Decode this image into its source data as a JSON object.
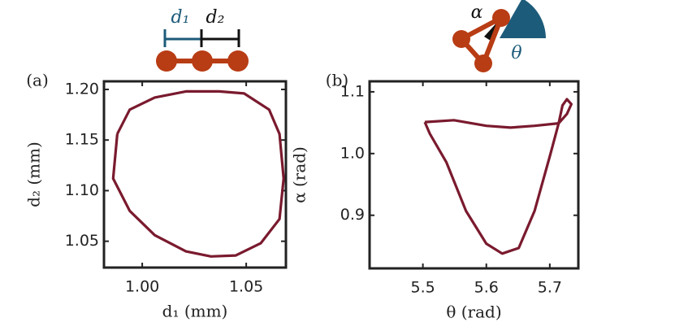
{
  "chart_data": [
    {
      "type": "line",
      "panel_label": "(a)",
      "xlabel": "d₁ (mm)",
      "ylabel": "d₂ (mm)",
      "annotations": [
        "d₁",
        "d₂"
      ],
      "xlim": [
        0.9816,
        1.0691
      ],
      "ylim": [
        1.024,
        1.208
      ],
      "xticks": [
        {
          "value": 1.0,
          "label": "1.00"
        },
        1.05
      ],
      "yticks": [
        1.05,
        {
          "value": 1.1,
          "label": "1.10"
        },
        1.15,
        {
          "value": 1.2,
          "label": "1.20"
        }
      ],
      "series": [
        {
          "color": "#7a1a2e",
          "x": [
            0.988,
            0.994,
            1.006,
            1.021,
            1.037,
            1.049,
            1.061,
            1.066,
            1.068,
            1.066,
            1.057,
            1.045,
            1.033,
            1.021,
            1.006,
            0.994,
            0.986,
            0.988
          ],
          "values": [
            1.156,
            1.18,
            1.192,
            1.198,
            1.198,
            1.196,
            1.18,
            1.156,
            1.112,
            1.072,
            1.048,
            1.036,
            1.035,
            1.04,
            1.056,
            1.08,
            1.112,
            1.156
          ]
        }
      ]
    },
    {
      "type": "line",
      "panel_label": "(b)",
      "xlabel": "θ (rad)",
      "ylabel": "α (rad)",
      "annotations": [
        "α",
        "θ"
      ],
      "xlim": [
        5.416,
        5.745
      ],
      "ylim": [
        0.814,
        1.117
      ],
      "xticks": [
        5.5,
        5.6,
        5.7
      ],
      "yticks": [
        0.9,
        {
          "value": 1.0,
          "label": "1.0"
        },
        1.1
      ],
      "series": [
        {
          "color": "#7a1a2e",
          "x": [
            5.503,
            5.549,
            5.6,
            5.638,
            5.676,
            5.714,
            5.72,
            5.727,
            5.734,
            5.727,
            5.714,
            5.701,
            5.676,
            5.651,
            5.625,
            5.6,
            5.568,
            5.537,
            5.511,
            5.503
          ],
          "values": [
            1.051,
            1.054,
            1.045,
            1.042,
            1.045,
            1.049,
            1.078,
            1.088,
            1.08,
            1.064,
            1.049,
            0.999,
            0.907,
            0.847,
            0.838,
            0.854,
            0.907,
            0.986,
            1.032,
            1.051
          ]
        }
      ]
    }
  ]
}
